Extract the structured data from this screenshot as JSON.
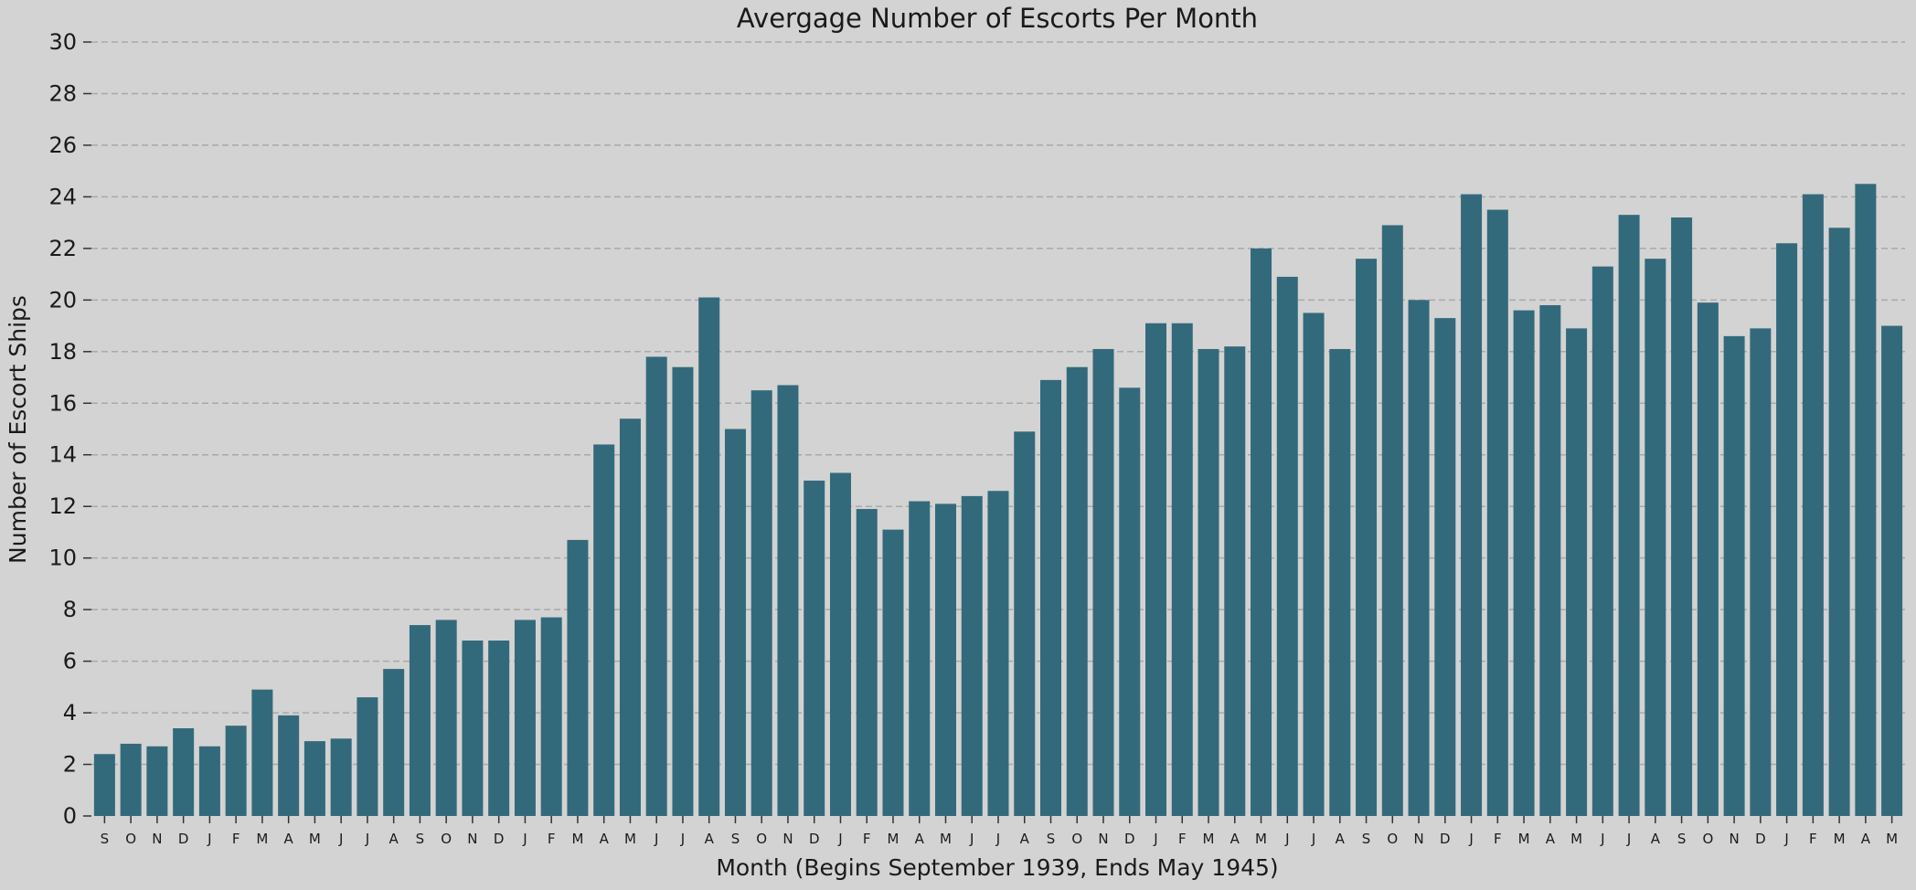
{
  "chart_data": {
    "type": "bar",
    "title": "Avergage Number of Escorts Per Month",
    "xlabel": "Month (Begins September 1939, Ends May 1945)",
    "ylabel": "Number of Escort Ships",
    "ylim": [
      0,
      30
    ],
    "yticks": [
      0,
      2,
      4,
      6,
      8,
      10,
      12,
      14,
      16,
      18,
      20,
      22,
      24,
      26,
      28,
      30
    ],
    "grid": "y-dashed",
    "color": "#336a7b",
    "background": "#d3d3d3",
    "categories": [
      "S",
      "O",
      "N",
      "D",
      "J",
      "F",
      "M",
      "A",
      "M",
      "J",
      "J",
      "A",
      "S",
      "O",
      "N",
      "D",
      "J",
      "F",
      "M",
      "A",
      "M",
      "J",
      "J",
      "A",
      "S",
      "O",
      "N",
      "D",
      "J",
      "F",
      "M",
      "A",
      "M",
      "J",
      "J",
      "A",
      "S",
      "O",
      "N",
      "D",
      "J",
      "F",
      "M",
      "A",
      "M",
      "J",
      "J",
      "A",
      "S",
      "O",
      "N",
      "D",
      "J",
      "F",
      "M",
      "A",
      "M",
      "J",
      "J",
      "A",
      "S",
      "O",
      "N",
      "D",
      "J",
      "F",
      "M",
      "A",
      "M"
    ],
    "values": [
      2.4,
      2.8,
      2.7,
      3.4,
      2.7,
      3.5,
      4.9,
      3.9,
      2.9,
      3.0,
      4.6,
      5.7,
      7.4,
      7.6,
      6.8,
      6.8,
      7.6,
      7.7,
      10.7,
      14.4,
      15.4,
      17.8,
      17.4,
      20.1,
      15.0,
      16.5,
      16.7,
      13.0,
      13.3,
      11.9,
      11.1,
      12.2,
      12.1,
      12.4,
      12.6,
      14.9,
      16.9,
      17.4,
      18.1,
      16.6,
      19.1,
      19.1,
      18.1,
      18.2,
      22.0,
      20.9,
      19.5,
      18.1,
      21.6,
      22.9,
      20.0,
      19.3,
      24.1,
      23.5,
      19.6,
      19.8,
      18.9,
      21.3,
      23.3,
      21.6,
      23.2,
      19.9,
      18.6,
      18.9,
      22.2,
      24.1,
      22.8,
      24.5,
      19.0
    ]
  }
}
